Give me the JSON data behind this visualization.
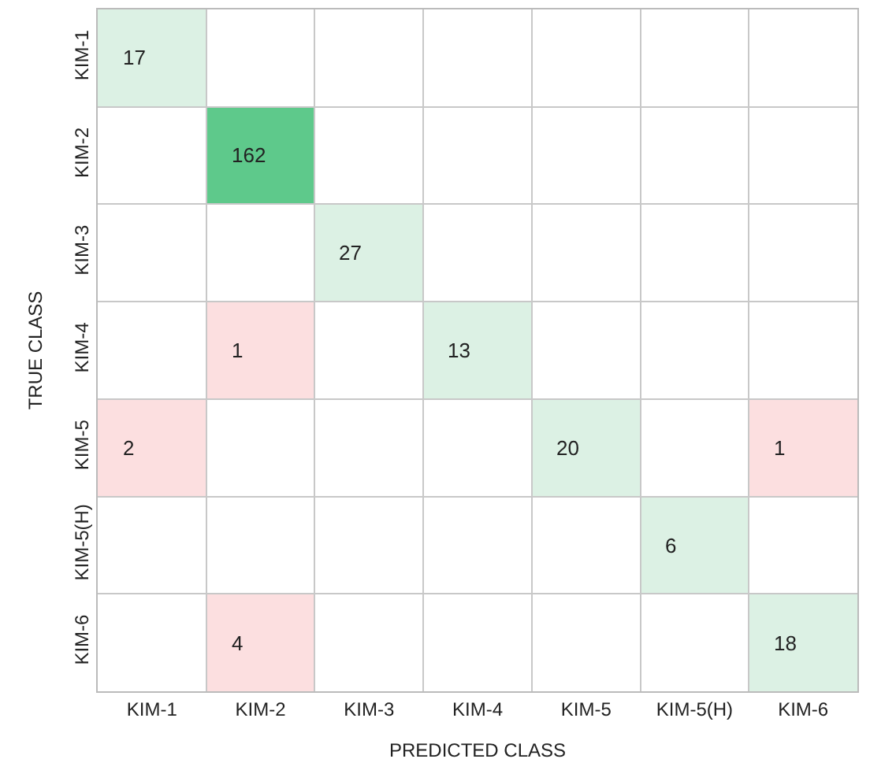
{
  "chart_data": {
    "type": "heatmap",
    "xlabel": "PREDICTED CLASS",
    "ylabel": "TRUE CLASS",
    "categories": [
      "KIM-1",
      "KIM-2",
      "KIM-3",
      "KIM-4",
      "KIM-5",
      "KIM-5(H)",
      "KIM-6"
    ],
    "y_categories": [
      "KIM-1",
      "KIM-2",
      "KIM-3",
      "KIM-4",
      "KIM-5",
      "KIM-5(H)",
      "KIM-6"
    ],
    "cells": [
      [
        17,
        null,
        null,
        null,
        null,
        null,
        null
      ],
      [
        null,
        162,
        null,
        null,
        null,
        null,
        null
      ],
      [
        null,
        null,
        27,
        null,
        null,
        null,
        null
      ],
      [
        null,
        1,
        null,
        13,
        null,
        null,
        null
      ],
      [
        2,
        null,
        null,
        null,
        20,
        null,
        1
      ],
      [
        null,
        null,
        null,
        null,
        null,
        6,
        null
      ],
      [
        null,
        4,
        null,
        null,
        null,
        null,
        18
      ]
    ],
    "colors": [
      [
        "#dcf1e4",
        null,
        null,
        null,
        null,
        null,
        null
      ],
      [
        null,
        "#5ec98b",
        null,
        null,
        null,
        null,
        null
      ],
      [
        null,
        null,
        "#dcf1e4",
        null,
        null,
        null,
        null
      ],
      [
        null,
        "#fcdfe0",
        null,
        "#dcf1e4",
        null,
        null,
        null
      ],
      [
        "#fcdfe0",
        null,
        null,
        null,
        "#dcf1e4",
        null,
        "#fcdfe0"
      ],
      [
        null,
        null,
        null,
        null,
        null,
        "#dcf1e4",
        null
      ],
      [
        null,
        "#fcdfe0",
        null,
        null,
        null,
        null,
        "#dcf1e4"
      ]
    ],
    "data_labels": true,
    "grid": true
  }
}
